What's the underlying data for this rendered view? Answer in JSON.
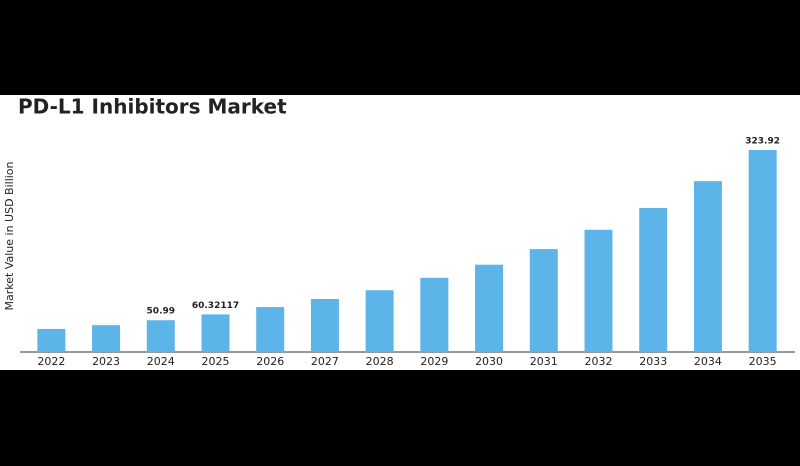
{
  "chart_data": {
    "type": "bar",
    "title": "PD-L1 Inhibitors Market",
    "y_label": "Market Value in USD Billion",
    "categories": [
      "2022",
      "2023",
      "2024",
      "2025",
      "2026",
      "2027",
      "2028",
      "2029",
      "2030",
      "2031",
      "2032",
      "2033",
      "2034",
      "2035"
    ],
    "values": [
      37,
      43,
      50.99,
      60.32117,
      72,
      85,
      99,
      119,
      140,
      165,
      196,
      231,
      274,
      323.92
    ],
    "value_labels": [
      null,
      null,
      "50.99",
      "60.32117",
      null,
      null,
      null,
      null,
      null,
      null,
      null,
      null,
      null,
      "323.92"
    ],
    "color": "#5db4e8",
    "ylim": [
      0,
      340
    ]
  }
}
